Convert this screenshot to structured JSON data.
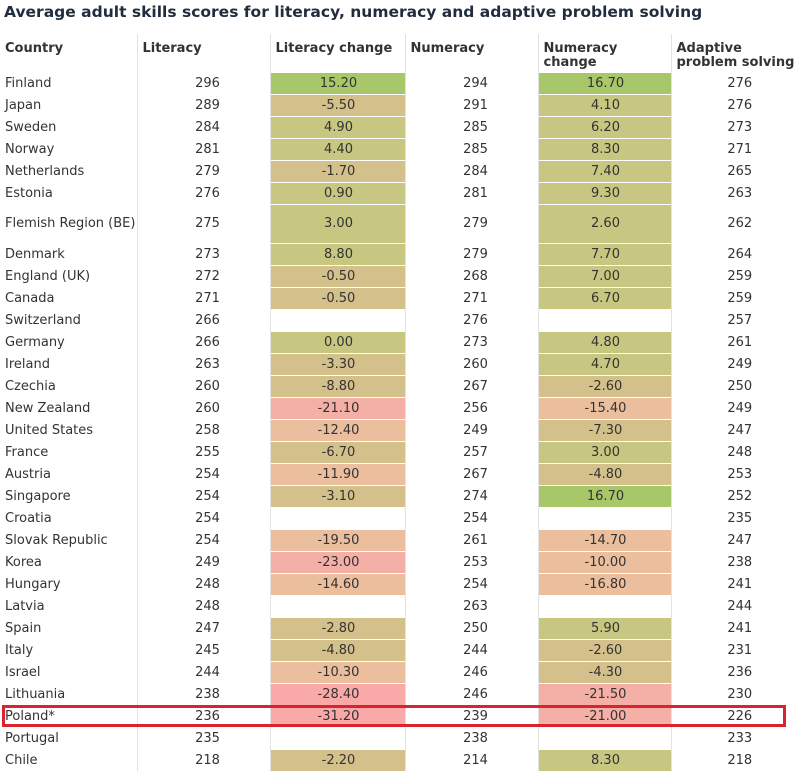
{
  "title": "Average adult skills scores for literacy, numeracy and adaptive problem solving",
  "colors": {
    "very_high_gain": "#a8c769",
    "gain": "#c7c781",
    "small_loss": "#d4c08a",
    "loss": "#ebbf9e",
    "large_loss": "#f4b0a6",
    "very_large_loss": "#f9a9a7",
    "highlight": "#d9232e"
  },
  "chart_data": {
    "type": "table",
    "title": "Average adult skills scores for literacy, numeracy and adaptive problem solving",
    "columns": [
      "Country",
      "Literacy",
      "Literacy change",
      "Numeracy",
      "Numeracy change",
      "Adaptive problem solving"
    ],
    "highlighted_row": "Poland*",
    "rows": [
      {
        "country": "Finland",
        "literacy": "296",
        "literacy_change": "15.20",
        "numeracy": "294",
        "numeracy_change": "16.70",
        "aps": "276"
      },
      {
        "country": "Japan",
        "literacy": "289",
        "literacy_change": "-5.50",
        "numeracy": "291",
        "numeracy_change": "4.10",
        "aps": "276"
      },
      {
        "country": "Sweden",
        "literacy": "284",
        "literacy_change": "4.90",
        "numeracy": "285",
        "numeracy_change": "6.20",
        "aps": "273"
      },
      {
        "country": "Norway",
        "literacy": "281",
        "literacy_change": "4.40",
        "numeracy": "285",
        "numeracy_change": "8.30",
        "aps": "271"
      },
      {
        "country": "Netherlands",
        "literacy": "279",
        "literacy_change": "-1.70",
        "numeracy": "284",
        "numeracy_change": "7.40",
        "aps": "265"
      },
      {
        "country": "Estonia",
        "literacy": "276",
        "literacy_change": "0.90",
        "numeracy": "281",
        "numeracy_change": "9.30",
        "aps": "263"
      },
      {
        "country": "Flemish Region (BE)",
        "literacy": "275",
        "literacy_change": "3.00",
        "numeracy": "279",
        "numeracy_change": "2.60",
        "aps": "262"
      },
      {
        "country": "Denmark",
        "literacy": "273",
        "literacy_change": "8.80",
        "numeracy": "279",
        "numeracy_change": "7.70",
        "aps": "264"
      },
      {
        "country": "England (UK)",
        "literacy": "272",
        "literacy_change": "-0.50",
        "numeracy": "268",
        "numeracy_change": "7.00",
        "aps": "259"
      },
      {
        "country": "Canada",
        "literacy": "271",
        "literacy_change": "-0.50",
        "numeracy": "271",
        "numeracy_change": "6.70",
        "aps": "259"
      },
      {
        "country": "Switzerland",
        "literacy": "266",
        "literacy_change": "",
        "numeracy": "276",
        "numeracy_change": "",
        "aps": "257"
      },
      {
        "country": "Germany",
        "literacy": "266",
        "literacy_change": "0.00",
        "numeracy": "273",
        "numeracy_change": "4.80",
        "aps": "261"
      },
      {
        "country": "Ireland",
        "literacy": "263",
        "literacy_change": "-3.30",
        "numeracy": "260",
        "numeracy_change": "4.70",
        "aps": "249"
      },
      {
        "country": "Czechia",
        "literacy": "260",
        "literacy_change": "-8.80",
        "numeracy": "267",
        "numeracy_change": "-2.60",
        "aps": "250"
      },
      {
        "country": "New Zealand",
        "literacy": "260",
        "literacy_change": "-21.10",
        "numeracy": "256",
        "numeracy_change": "-15.40",
        "aps": "249"
      },
      {
        "country": "United States",
        "literacy": "258",
        "literacy_change": "-12.40",
        "numeracy": "249",
        "numeracy_change": "-7.30",
        "aps": "247"
      },
      {
        "country": "France",
        "literacy": "255",
        "literacy_change": "-6.70",
        "numeracy": "257",
        "numeracy_change": "3.00",
        "aps": "248"
      },
      {
        "country": "Austria",
        "literacy": "254",
        "literacy_change": "-11.90",
        "numeracy": "267",
        "numeracy_change": "-4.80",
        "aps": "253"
      },
      {
        "country": "Singapore",
        "literacy": "254",
        "literacy_change": "-3.10",
        "numeracy": "274",
        "numeracy_change": "16.70",
        "aps": "252"
      },
      {
        "country": "Croatia",
        "literacy": "254",
        "literacy_change": "",
        "numeracy": "254",
        "numeracy_change": "",
        "aps": "235"
      },
      {
        "country": "Slovak Republic",
        "literacy": "254",
        "literacy_change": "-19.50",
        "numeracy": "261",
        "numeracy_change": "-14.70",
        "aps": "247"
      },
      {
        "country": "Korea",
        "literacy": "249",
        "literacy_change": "-23.00",
        "numeracy": "253",
        "numeracy_change": "-10.00",
        "aps": "238"
      },
      {
        "country": "Hungary",
        "literacy": "248",
        "literacy_change": "-14.60",
        "numeracy": "254",
        "numeracy_change": "-16.80",
        "aps": "241"
      },
      {
        "country": "Latvia",
        "literacy": "248",
        "literacy_change": "",
        "numeracy": "263",
        "numeracy_change": "",
        "aps": "244"
      },
      {
        "country": "Spain",
        "literacy": "247",
        "literacy_change": "-2.80",
        "numeracy": "250",
        "numeracy_change": "5.90",
        "aps": "241"
      },
      {
        "country": "Italy",
        "literacy": "245",
        "literacy_change": "-4.80",
        "numeracy": "244",
        "numeracy_change": "-2.60",
        "aps": "231"
      },
      {
        "country": "Israel",
        "literacy": "244",
        "literacy_change": "-10.30",
        "numeracy": "246",
        "numeracy_change": "-4.30",
        "aps": "236"
      },
      {
        "country": "Lithuania",
        "literacy": "238",
        "literacy_change": "-28.40",
        "numeracy": "246",
        "numeracy_change": "-21.50",
        "aps": "230"
      },
      {
        "country": "Poland*",
        "literacy": "236",
        "literacy_change": "-31.20",
        "numeracy": "239",
        "numeracy_change": "-21.00",
        "aps": "226"
      },
      {
        "country": "Portugal",
        "literacy": "235",
        "literacy_change": "",
        "numeracy": "238",
        "numeracy_change": "",
        "aps": "233"
      },
      {
        "country": "Chile",
        "literacy": "218",
        "literacy_change": "-2.20",
        "numeracy": "214",
        "numeracy_change": "8.30",
        "aps": "218"
      }
    ]
  }
}
